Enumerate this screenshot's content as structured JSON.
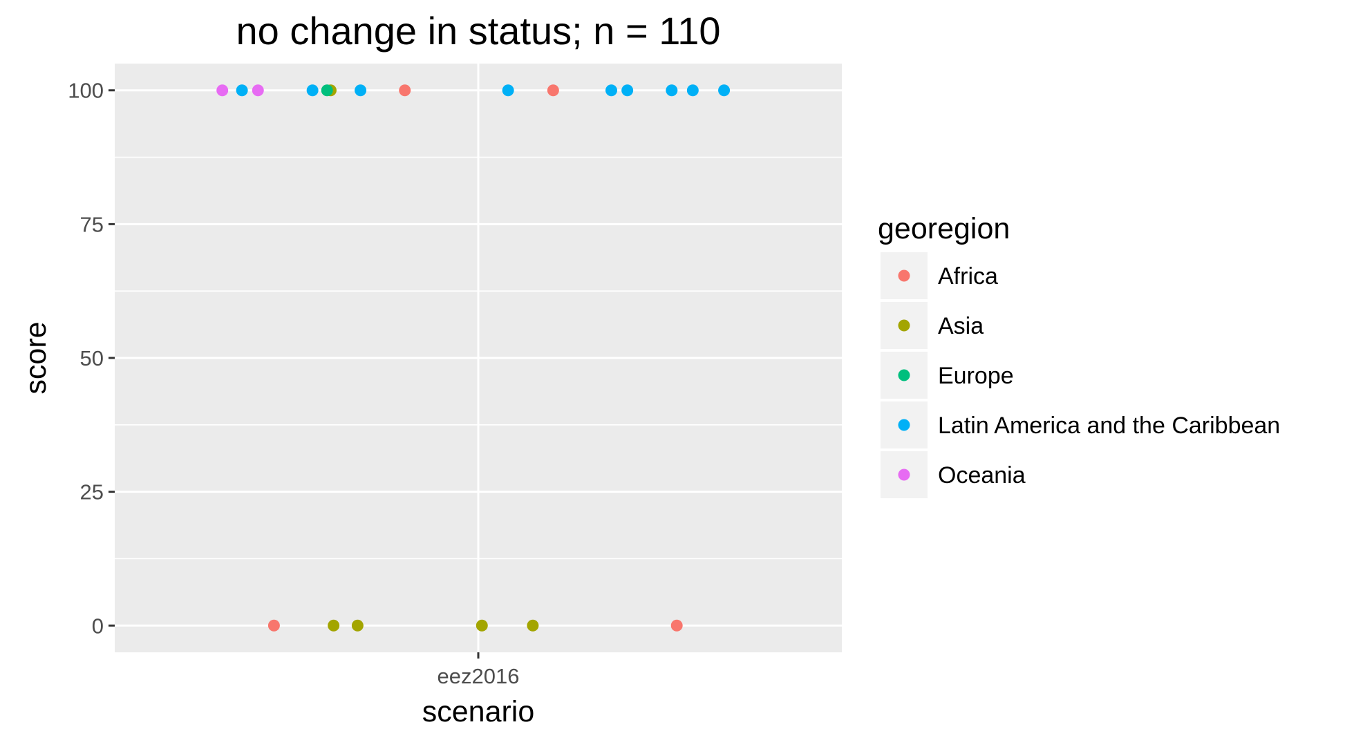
{
  "chart_data": {
    "type": "scatter",
    "title": "no change in  status; n = 110",
    "xlabel": "scenario",
    "ylabel": "score",
    "categories": [
      "eez2016"
    ],
    "ylim": [
      -5,
      105
    ],
    "yticks": [
      0,
      25,
      50,
      75,
      100
    ],
    "grid": true,
    "jitter": "horizontal",
    "legend": {
      "title": "georegion",
      "placement": "right",
      "entries": [
        {
          "name": "Africa",
          "color": "#F8766D"
        },
        {
          "name": "Asia",
          "color": "#A3A500"
        },
        {
          "name": "Europe",
          "color": "#00BF7D"
        },
        {
          "name": "Latin America and the Caribbean",
          "color": "#00B0F6"
        },
        {
          "name": "Oceania",
          "color": "#E76BF3"
        }
      ]
    },
    "points": [
      {
        "category": "eez2016",
        "offset": -0.352,
        "y": 100,
        "group": "Oceania"
      },
      {
        "category": "eez2016",
        "offset": -0.325,
        "y": 100,
        "group": "Latin America and the Caribbean"
      },
      {
        "category": "eez2016",
        "offset": -0.303,
        "y": 100,
        "group": "Oceania"
      },
      {
        "category": "eez2016",
        "offset": -0.228,
        "y": 100,
        "group": "Latin America and the Caribbean"
      },
      {
        "category": "eez2016",
        "offset": -0.203,
        "y": 100,
        "group": "Asia"
      },
      {
        "category": "eez2016",
        "offset": -0.208,
        "y": 100,
        "group": "Europe"
      },
      {
        "category": "eez2016",
        "offset": -0.162,
        "y": 100,
        "group": "Latin America and the Caribbean"
      },
      {
        "category": "eez2016",
        "offset": -0.101,
        "y": 100,
        "group": "Africa"
      },
      {
        "category": "eez2016",
        "offset": 0.041,
        "y": 100,
        "group": "Latin America and the Caribbean"
      },
      {
        "category": "eez2016",
        "offset": 0.103,
        "y": 100,
        "group": "Africa"
      },
      {
        "category": "eez2016",
        "offset": 0.183,
        "y": 100,
        "group": "Latin America and the Caribbean"
      },
      {
        "category": "eez2016",
        "offset": 0.205,
        "y": 100,
        "group": "Latin America and the Caribbean"
      },
      {
        "category": "eez2016",
        "offset": 0.266,
        "y": 100,
        "group": "Latin America and the Caribbean"
      },
      {
        "category": "eez2016",
        "offset": 0.295,
        "y": 100,
        "group": "Latin America and the Caribbean"
      },
      {
        "category": "eez2016",
        "offset": 0.338,
        "y": 100,
        "group": "Latin America and the Caribbean"
      },
      {
        "category": "eez2016",
        "offset": -0.281,
        "y": 0,
        "group": "Africa"
      },
      {
        "category": "eez2016",
        "offset": -0.199,
        "y": 0,
        "group": "Asia"
      },
      {
        "category": "eez2016",
        "offset": -0.166,
        "y": 0,
        "group": "Asia"
      },
      {
        "category": "eez2016",
        "offset": 0.005,
        "y": 0,
        "group": "Asia"
      },
      {
        "category": "eez2016",
        "offset": 0.075,
        "y": 0,
        "group": "Asia"
      },
      {
        "category": "eez2016",
        "offset": 0.273,
        "y": 0,
        "group": "Africa"
      }
    ]
  }
}
